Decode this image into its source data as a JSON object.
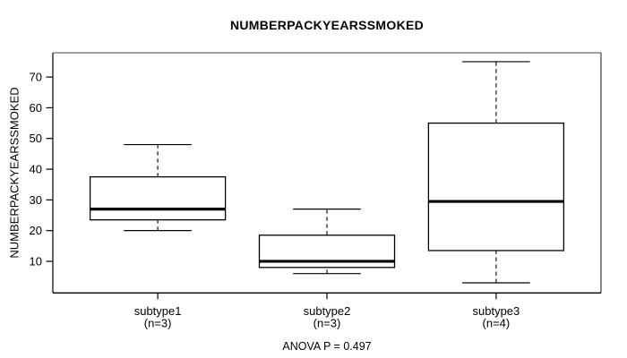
{
  "chart_data": {
    "type": "boxplot",
    "title": "NUMBERPACKYEARSSMOKED",
    "ylabel": "NUMBERPACKYEARSSMOKED",
    "xlabel": "",
    "annotation": "ANOVA P = 0.497",
    "y_ticks": [
      10,
      20,
      30,
      40,
      50,
      60,
      70
    ],
    "ylim": [
      -0.3,
      77.9
    ],
    "xlim": [
      0.38,
      3.62
    ],
    "grid": false,
    "legend": "none",
    "categories": [
      {
        "label": "subtype1",
        "n_label": "(n=3)",
        "n": 3,
        "stats": {
          "min": 20,
          "q1": 23.5,
          "median": 27,
          "q3": 37.5,
          "max": 48
        }
      },
      {
        "label": "subtype2",
        "n_label": "(n=3)",
        "n": 3,
        "stats": {
          "min": 6,
          "q1": 8,
          "median": 10,
          "q3": 18.5,
          "max": 27
        }
      },
      {
        "label": "subtype3",
        "n_label": "(n=4)",
        "n": 4,
        "stats": {
          "min": 3,
          "q1": 13.5,
          "median": 29.5,
          "q3": 55,
          "max": 75
        }
      }
    ],
    "colors": {
      "line": "#000000",
      "frame_top": "#808080",
      "frame_right": "#3d3d3d",
      "box_fill": "#ffffff",
      "background": "#ffffff"
    }
  }
}
